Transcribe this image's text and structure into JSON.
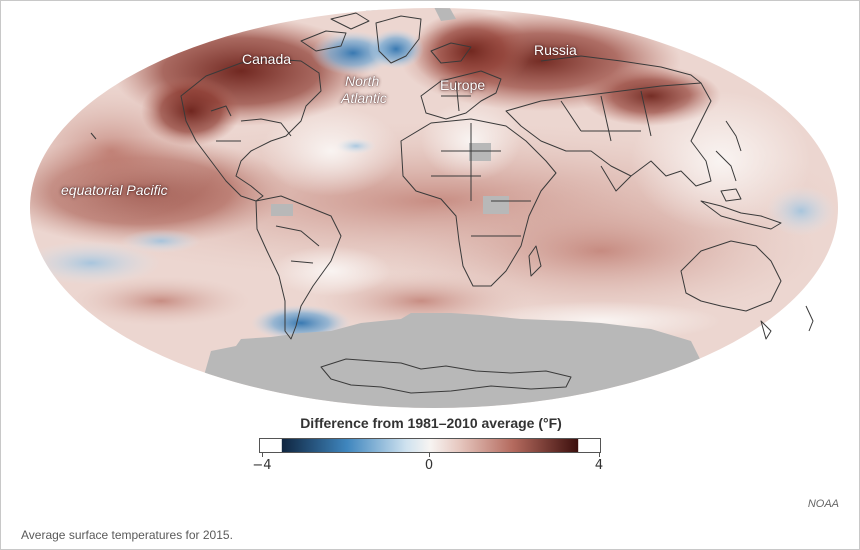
{
  "map": {
    "region_labels": {
      "canada": "Canada",
      "russia": "Russia",
      "north_atlantic_line1": "North",
      "north_atlantic_line2": "Atlantic",
      "europe": "Europe",
      "equatorial_pacific": "equatorial Pacific"
    }
  },
  "legend": {
    "title": "Difference from 1981–2010 average (°F)",
    "min_label": "−4",
    "mid_label": "0",
    "max_label": "4",
    "scale": {
      "min": -4,
      "max": 4
    },
    "colors": {
      "cold": "#0f2540",
      "cool": "#3f86be",
      "neutral": "#f7f4f2",
      "warm": "#b46a5e",
      "hot": "#3c0f0d"
    }
  },
  "credit": "NOAA",
  "caption": "Average surface temperatures for 2015.",
  "colors": {
    "no_data": "#b8b8b8",
    "land_outline": "#3a3a3a"
  }
}
